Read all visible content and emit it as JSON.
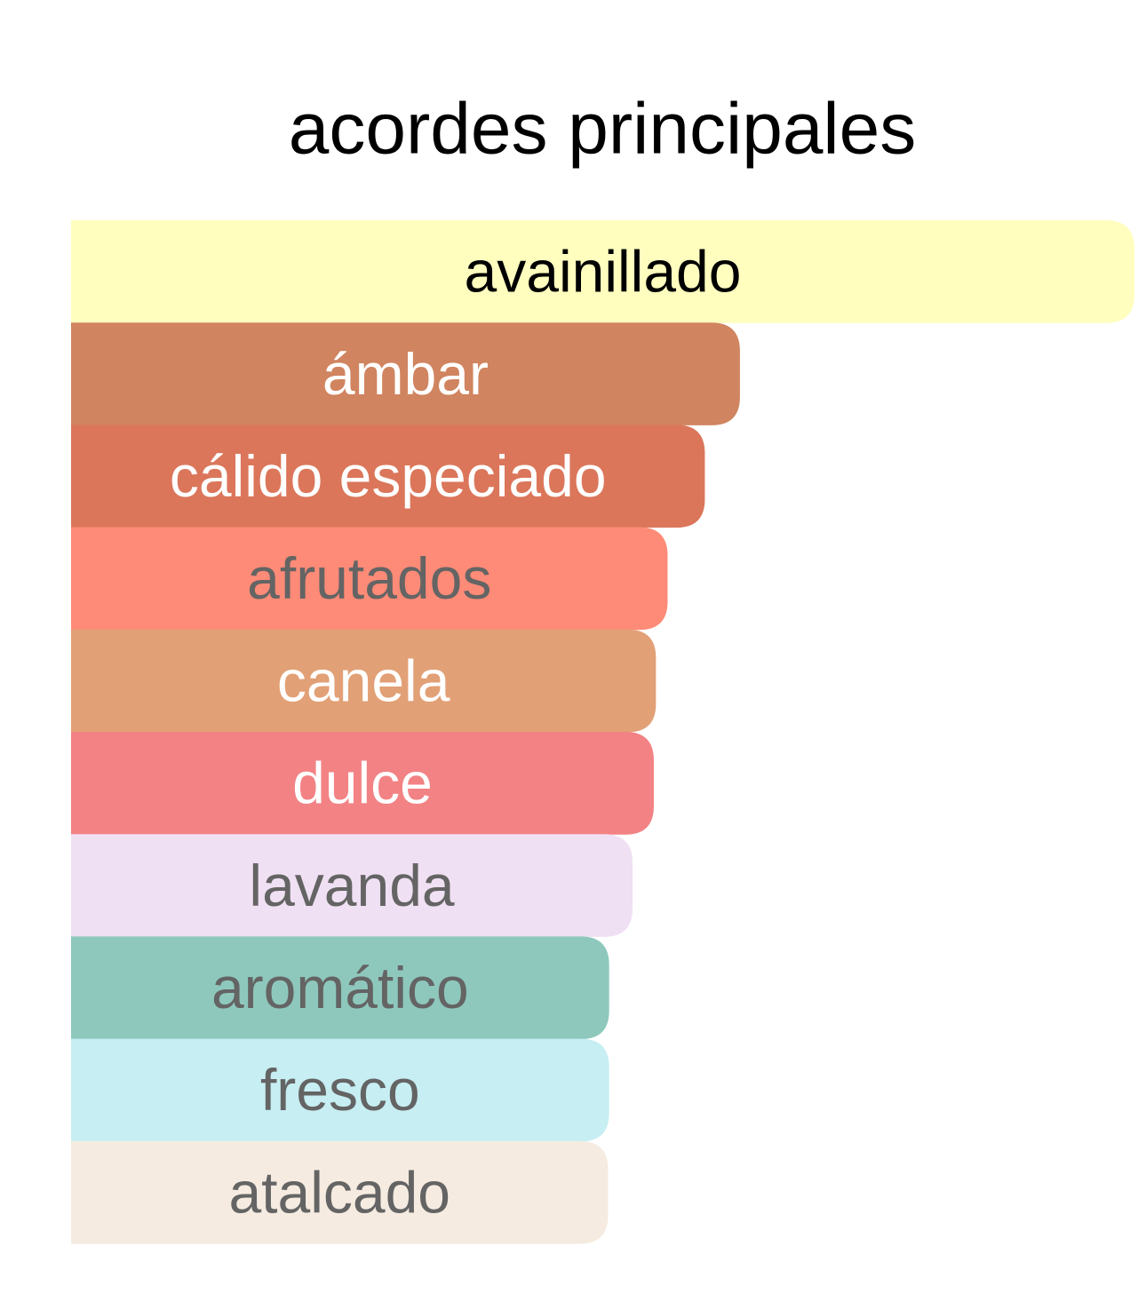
{
  "chart_data": {
    "type": "bar",
    "orientation": "horizontal",
    "title": "acordes principales",
    "categories": [
      "avainillado",
      "ámbar",
      "cálido especiado",
      "afrutados",
      "canela",
      "dulce",
      "lavanda",
      "aromático",
      "fresco",
      "atalcado"
    ],
    "values": [
      100,
      62.9,
      59.6,
      56.1,
      55.0,
      54.8,
      52.8,
      50.6,
      50.6,
      50.5
    ],
    "colors": [
      "#fffebf",
      "#d0845f",
      "#db765a",
      "#fe8b77",
      "#e2a076",
      "#f28284",
      "#f0e0f3",
      "#8ec8bc",
      "#c6eef3",
      "#f5ebe0"
    ],
    "label_colors": [
      "#000000",
      "#ffffff",
      "#ffffff",
      "#646464",
      "#ffffff",
      "#ffffff",
      "#646464",
      "#646464",
      "#646464",
      "#646464"
    ]
  }
}
